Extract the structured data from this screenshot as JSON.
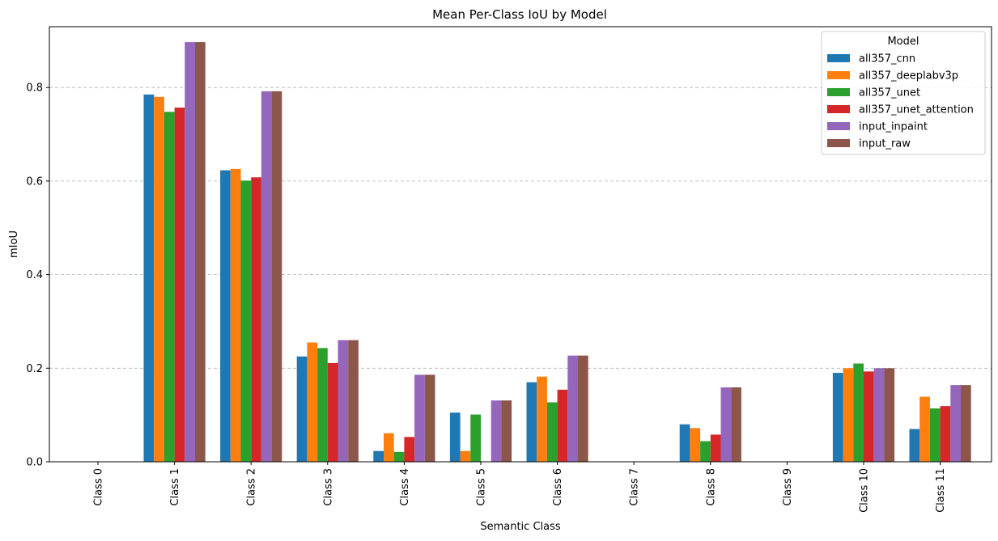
{
  "chart_data": {
    "type": "bar",
    "title": "Mean Per-Class IoU by Model",
    "xlabel": "Semantic Class",
    "ylabel": "mIoU",
    "ylim": [
      0,
      0.93
    ],
    "yticks": [
      0.0,
      0.2,
      0.4,
      0.6,
      0.8
    ],
    "grid": "y-dashed",
    "legend": {
      "title": "Model",
      "placement": "top-right"
    },
    "categories": [
      "Class 0",
      "Class 1",
      "Class 2",
      "Class 3",
      "Class 4",
      "Class 5",
      "Class 6",
      "Class 7",
      "Class 8",
      "Class 9",
      "Class 10",
      "Class 11"
    ],
    "series": [
      {
        "name": "all357_cnn",
        "color": "#1f77b4",
        "values": [
          0.0,
          0.785,
          0.623,
          0.225,
          0.023,
          0.105,
          0.17,
          0.0,
          0.08,
          0.0,
          0.19,
          0.07
        ]
      },
      {
        "name": "all357_deeplabv3p",
        "color": "#ff7f0e",
        "values": [
          0.0,
          0.78,
          0.626,
          0.255,
          0.061,
          0.023,
          0.182,
          0.0,
          0.072,
          0.0,
          0.2,
          0.139
        ]
      },
      {
        "name": "all357_unet",
        "color": "#2ca02c",
        "values": [
          0.0,
          0.748,
          0.601,
          0.243,
          0.021,
          0.101,
          0.127,
          0.0,
          0.044,
          0.0,
          0.21,
          0.114
        ]
      },
      {
        "name": "all357_unet_attention",
        "color": "#d62728",
        "values": [
          0.0,
          0.757,
          0.608,
          0.211,
          0.053,
          0.0,
          0.154,
          0.0,
          0.058,
          0.0,
          0.193,
          0.119
        ]
      },
      {
        "name": "input_inpaint",
        "color": "#9467bd",
        "values": [
          0.0,
          0.897,
          0.792,
          0.26,
          0.186,
          0.131,
          0.227,
          0.0,
          0.159,
          0.0,
          0.2,
          0.164
        ]
      },
      {
        "name": "input_raw",
        "color": "#8c564b",
        "values": [
          0.0,
          0.897,
          0.792,
          0.26,
          0.186,
          0.131,
          0.227,
          0.0,
          0.159,
          0.0,
          0.2,
          0.164
        ]
      }
    ]
  }
}
